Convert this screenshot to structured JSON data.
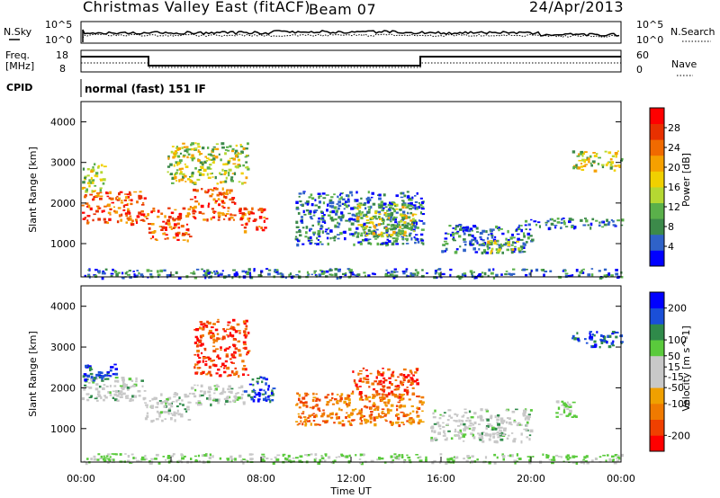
{
  "header": {
    "title": "Christmas Valley East (fitACF)",
    "beam": "Beam 07",
    "date": "24/Apr/2013"
  },
  "status_panel": {
    "left_label": "N.Sky",
    "right_label": "N.Search",
    "left_ticks": [
      "10^5",
      "10^0"
    ],
    "right_ticks": [
      "10^5",
      "10^0"
    ]
  },
  "freq_panel": {
    "left_label_line1": "Freq.",
    "left_label_line2": "[MHz]",
    "right_label": "Nave",
    "left_ticks": [
      "18",
      "8"
    ],
    "right_ticks": [
      "60",
      "0"
    ]
  },
  "cpid": {
    "label": "CPID",
    "mode": "normal (fast) 151 IF"
  },
  "x_axis": {
    "label": "Time UT",
    "ticks": [
      "00:00",
      "04:00",
      "08:00",
      "12:00",
      "16:00",
      "20:00",
      "00:00"
    ]
  },
  "chart_data": [
    {
      "type": "heatmap",
      "quantity": "Power",
      "ylabel": "Slant Range [km]",
      "yticks": [
        "1000",
        "2000",
        "3000",
        "4000"
      ],
      "ylim": [
        180,
        4500
      ],
      "xlim": [
        0,
        24
      ],
      "colorbar": {
        "label": "Power [dB]",
        "ticks": [
          "28",
          "24",
          "20",
          "16",
          "12",
          "8",
          "4"
        ],
        "range": [
          0,
          32
        ],
        "colors": [
          "#0000ff",
          "#2f62c8",
          "#3c8a4a",
          "#5ab04a",
          "#b5d832",
          "#f0d000",
          "#f5a000",
          "#f06a00",
          "#e83000",
          "#ff0000"
        ]
      },
      "regions": [
        {
          "t0": 0.0,
          "t1": 2.8,
          "r0": 1500,
          "r1": 2300,
          "level": "high"
        },
        {
          "t0": 0.0,
          "t1": 1.0,
          "r0": 2300,
          "r1": 3000,
          "level": "mid"
        },
        {
          "t0": 2.8,
          "t1": 4.8,
          "r0": 1100,
          "r1": 1900,
          "level": "high"
        },
        {
          "t0": 4.8,
          "t1": 6.8,
          "r0": 1600,
          "r1": 2400,
          "level": "high"
        },
        {
          "t0": 3.8,
          "t1": 7.4,
          "r0": 2500,
          "r1": 3500,
          "level": "mid"
        },
        {
          "t0": 7.0,
          "t1": 8.2,
          "r0": 1300,
          "r1": 1900,
          "level": "high"
        },
        {
          "t0": 9.5,
          "t1": 15.2,
          "r0": 1000,
          "r1": 2300,
          "level": "low"
        },
        {
          "t0": 12.2,
          "t1": 14.8,
          "r0": 1200,
          "r1": 2000,
          "level": "mid"
        },
        {
          "t0": 16.0,
          "t1": 20.0,
          "r0": 800,
          "r1": 1500,
          "level": "low"
        },
        {
          "t0": 18.0,
          "t1": 19.5,
          "r0": 800,
          "r1": 1100,
          "level": "mid"
        },
        {
          "t0": 19.5,
          "t1": 24.0,
          "r0": 1400,
          "r1": 1650,
          "level": "low"
        },
        {
          "t0": 21.8,
          "t1": 24.0,
          "r0": 2800,
          "r1": 3300,
          "level": "mid"
        },
        {
          "t0": 0.0,
          "t1": 24.0,
          "r0": 180,
          "r1": 400,
          "level": "low"
        }
      ]
    },
    {
      "type": "heatmap",
      "quantity": "Velocity",
      "ylabel": "Slant Range [km]",
      "yticks": [
        "1000",
        "2000",
        "3000",
        "4000"
      ],
      "ylim": [
        180,
        4500
      ],
      "xlim": [
        0,
        24
      ],
      "colorbar": {
        "label": "Velocity [m s^-1]",
        "ticks": [
          "200",
          "100",
          "50",
          "15",
          "-15",
          "-50",
          "-100",
          "-200"
        ],
        "range": [
          -250,
          250
        ],
        "colors": [
          "#ff0000",
          "#f04000",
          "#f07a00",
          "#f0a000",
          "#c8c8c8",
          "#c8c8c8",
          "#5aca3c",
          "#2f8a4a",
          "#1a4fd8",
          "#0000ff"
        ]
      },
      "regions": [
        {
          "t0": 0.0,
          "t1": 2.8,
          "r0": 1700,
          "r1": 2300,
          "level": "zero"
        },
        {
          "t0": 0.0,
          "t1": 1.5,
          "r0": 2200,
          "r1": 2600,
          "level": "toward"
        },
        {
          "t0": 2.8,
          "t1": 4.8,
          "r0": 1200,
          "r1": 1900,
          "level": "zero"
        },
        {
          "t0": 4.8,
          "t1": 7.2,
          "r0": 1600,
          "r1": 2100,
          "level": "zero"
        },
        {
          "t0": 5.0,
          "t1": 7.4,
          "r0": 2300,
          "r1": 3700,
          "level": "away"
        },
        {
          "t0": 7.2,
          "t1": 8.5,
          "r0": 1700,
          "r1": 2300,
          "level": "toward"
        },
        {
          "t0": 9.5,
          "t1": 15.2,
          "r0": 1100,
          "r1": 1900,
          "level": "awayMid"
        },
        {
          "t0": 12.0,
          "t1": 15.0,
          "r0": 1800,
          "r1": 2500,
          "level": "away"
        },
        {
          "t0": 15.5,
          "t1": 20.0,
          "r0": 700,
          "r1": 1500,
          "level": "zero"
        },
        {
          "t0": 21.0,
          "t1": 22.0,
          "r0": 1300,
          "r1": 1700,
          "level": "slow"
        },
        {
          "t0": 21.8,
          "t1": 24.0,
          "r0": 3000,
          "r1": 3400,
          "level": "toward"
        },
        {
          "t0": 0.0,
          "t1": 24.0,
          "r0": 180,
          "r1": 400,
          "level": "slow"
        }
      ]
    }
  ],
  "colors": {
    "trace": "#000000",
    "frame": "#000000"
  }
}
